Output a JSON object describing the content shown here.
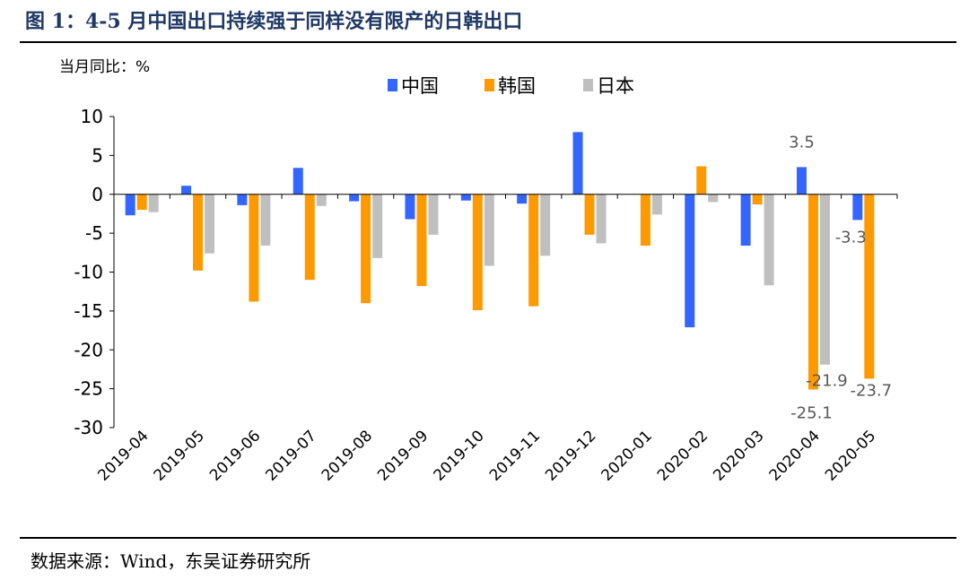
{
  "figure": {
    "title": "图 1：4-5 月中国出口持续强于同样没有限产的日韩出口",
    "unit_label": "当月同比：%",
    "source": "数据来源：Wind，东吴证券研究所"
  },
  "chart_data": {
    "type": "bar",
    "title": "",
    "xlabel": "",
    "ylabel": "当月同比：%",
    "ylim": [
      -30,
      10
    ],
    "yticks": [
      10,
      5,
      0,
      -5,
      -10,
      -15,
      -20,
      -25,
      -30
    ],
    "grid": false,
    "legend_position": "top-center",
    "categories": [
      "2019-04",
      "2019-05",
      "2019-06",
      "2019-07",
      "2019-08",
      "2019-09",
      "2019-10",
      "2019-11",
      "2019-12",
      "2020-01",
      "2020-02",
      "2020-03",
      "2020-04",
      "2020-05"
    ],
    "series": [
      {
        "name": "中国",
        "color": "#3366ff",
        "values": [
          -2.7,
          1.1,
          -1.4,
          3.4,
          -0.9,
          -3.2,
          -0.8,
          -1.2,
          8.0,
          null,
          -17.1,
          -6.6,
          3.5,
          -3.3
        ]
      },
      {
        "name": "韩国",
        "color": "#ff9900",
        "values": [
          -2.0,
          -9.8,
          -13.8,
          -11.0,
          -14.0,
          -11.8,
          -14.9,
          -14.4,
          -5.2,
          -6.6,
          3.6,
          -1.3,
          -25.1,
          -23.7
        ]
      },
      {
        "name": "日本",
        "color": "#bfbfbf",
        "values": [
          -2.3,
          -7.6,
          -6.6,
          -1.5,
          -8.2,
          -5.2,
          -9.2,
          -7.9,
          -6.3,
          -2.6,
          -1.0,
          -11.7,
          -21.9,
          null
        ]
      }
    ],
    "data_labels": [
      {
        "series": 0,
        "index": 12,
        "text": "3.5"
      },
      {
        "series": 0,
        "index": 13,
        "text": "-3.3"
      },
      {
        "series": 2,
        "index": 12,
        "text": "-21.9"
      },
      {
        "series": 1,
        "index": 12,
        "text": "-25.1"
      },
      {
        "series": 1,
        "index": 13,
        "text": "-23.7"
      }
    ]
  }
}
